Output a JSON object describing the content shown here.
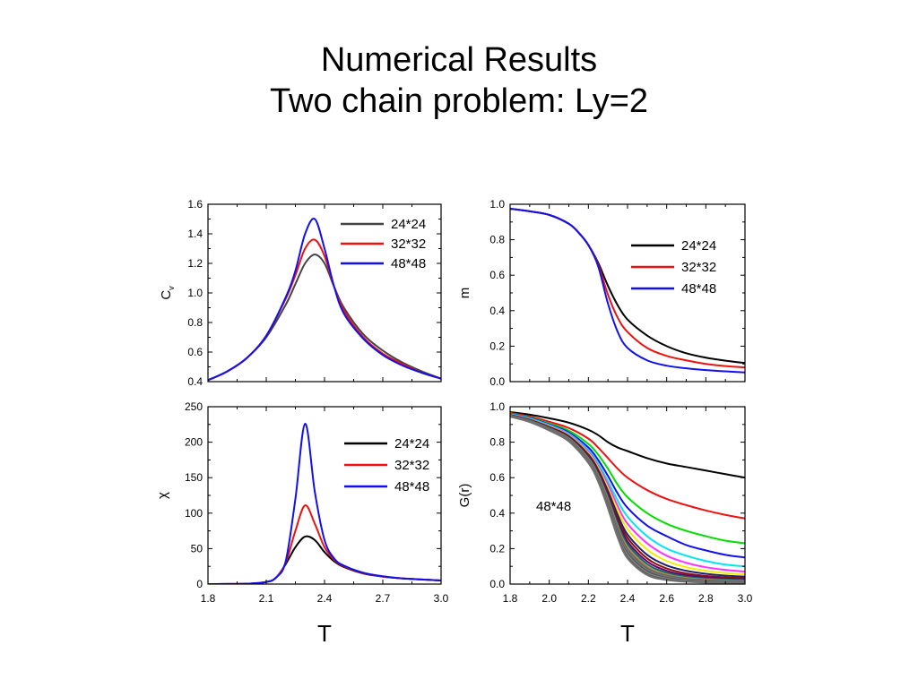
{
  "title": {
    "line1": "Numerical Results",
    "line2": "Two chain problem: Ly=2"
  },
  "chart_data": [
    {
      "id": "cv",
      "type": "line",
      "xlabel": "",
      "ylabel": "C_v",
      "xlim": [
        1.8,
        3.0
      ],
      "ylim": [
        0.4,
        1.6
      ],
      "xticks": [],
      "yticks": [
        0.4,
        0.6,
        0.8,
        1.0,
        1.2,
        1.4,
        1.6
      ],
      "ytick_labels": [
        "0.4",
        "0.6",
        "0.8",
        "1.0",
        "1.2",
        "1.4",
        "1.6"
      ],
      "legend": "top-right",
      "series": [
        {
          "name": "24*24",
          "color": "#444444",
          "x": [
            1.8,
            1.9,
            2.0,
            2.1,
            2.2,
            2.25,
            2.3,
            2.35,
            2.4,
            2.45,
            2.5,
            2.6,
            2.7,
            2.8,
            2.9,
            3.0
          ],
          "y": [
            0.41,
            0.47,
            0.56,
            0.7,
            0.92,
            1.06,
            1.2,
            1.26,
            1.2,
            1.04,
            0.9,
            0.72,
            0.61,
            0.53,
            0.47,
            0.42
          ]
        },
        {
          "name": "32*32",
          "color": "#ee1111",
          "x": [
            1.8,
            1.9,
            2.0,
            2.1,
            2.2,
            2.25,
            2.3,
            2.35,
            2.4,
            2.45,
            2.5,
            2.6,
            2.7,
            2.8,
            2.9,
            3.0
          ],
          "y": [
            0.41,
            0.47,
            0.56,
            0.71,
            0.96,
            1.12,
            1.3,
            1.36,
            1.25,
            1.04,
            0.88,
            0.7,
            0.59,
            0.52,
            0.46,
            0.42
          ]
        },
        {
          "name": "48*48",
          "color": "#1111ee",
          "x": [
            1.8,
            1.9,
            2.0,
            2.1,
            2.2,
            2.25,
            2.3,
            2.35,
            2.4,
            2.45,
            2.5,
            2.6,
            2.7,
            2.8,
            2.9,
            3.0
          ],
          "y": [
            0.41,
            0.47,
            0.56,
            0.71,
            0.97,
            1.15,
            1.4,
            1.5,
            1.3,
            1.04,
            0.86,
            0.69,
            0.58,
            0.51,
            0.46,
            0.42
          ]
        }
      ]
    },
    {
      "id": "m",
      "type": "line",
      "xlabel": "",
      "ylabel": "m",
      "xlim": [
        1.8,
        3.0
      ],
      "ylim": [
        0.0,
        1.0
      ],
      "xticks": [],
      "yticks": [
        0.0,
        0.2,
        0.4,
        0.6,
        0.8,
        1.0
      ],
      "ytick_labels": [
        "0.0",
        "0.2",
        "0.4",
        "0.6",
        "0.8",
        "1.0"
      ],
      "legend": "right",
      "series": [
        {
          "name": "24*24",
          "color": "#000000",
          "x": [
            1.8,
            1.9,
            2.0,
            2.1,
            2.15,
            2.2,
            2.25,
            2.3,
            2.35,
            2.4,
            2.5,
            2.6,
            2.7,
            2.8,
            2.9,
            3.0
          ],
          "y": [
            0.975,
            0.96,
            0.94,
            0.89,
            0.84,
            0.77,
            0.67,
            0.54,
            0.43,
            0.35,
            0.26,
            0.2,
            0.16,
            0.135,
            0.118,
            0.105
          ]
        },
        {
          "name": "32*32",
          "color": "#ee1111",
          "x": [
            1.8,
            1.9,
            2.0,
            2.1,
            2.15,
            2.2,
            2.25,
            2.3,
            2.35,
            2.4,
            2.5,
            2.6,
            2.7,
            2.8,
            2.9,
            3.0
          ],
          "y": [
            0.975,
            0.96,
            0.94,
            0.89,
            0.84,
            0.77,
            0.66,
            0.49,
            0.36,
            0.28,
            0.19,
            0.145,
            0.12,
            0.1,
            0.088,
            0.08
          ]
        },
        {
          "name": "48*48",
          "color": "#1111ee",
          "x": [
            1.8,
            1.9,
            2.0,
            2.1,
            2.15,
            2.2,
            2.25,
            2.3,
            2.35,
            2.4,
            2.5,
            2.6,
            2.7,
            2.8,
            2.9,
            3.0
          ],
          "y": [
            0.975,
            0.96,
            0.94,
            0.89,
            0.84,
            0.77,
            0.65,
            0.44,
            0.28,
            0.19,
            0.12,
            0.09,
            0.075,
            0.065,
            0.058,
            0.052
          ]
        }
      ]
    },
    {
      "id": "chi",
      "type": "line",
      "xlabel": "T",
      "ylabel": "χ",
      "xlim": [
        1.8,
        3.0
      ],
      "ylim": [
        0,
        250
      ],
      "xticks": [
        1.8,
        2.1,
        2.4,
        2.7,
        3.0
      ],
      "xtick_labels": [
        "1.8",
        "2.1",
        "2.4",
        "2.7",
        "3.0"
      ],
      "yticks": [
        0,
        50,
        100,
        150,
        200,
        250
      ],
      "ytick_labels": [
        "0",
        "50",
        "100",
        "150",
        "200",
        "250"
      ],
      "legend": "top-right",
      "series": [
        {
          "name": "24*24",
          "color": "#000000",
          "x": [
            1.8,
            2.0,
            2.1,
            2.15,
            2.2,
            2.25,
            2.3,
            2.35,
            2.4,
            2.45,
            2.5,
            2.6,
            2.7,
            2.8,
            2.9,
            3.0
          ],
          "y": [
            0,
            0.5,
            3,
            9,
            28,
            52,
            67,
            62,
            45,
            32,
            24,
            15,
            10.5,
            8,
            6.5,
            5
          ]
        },
        {
          "name": "32*32",
          "color": "#ee1111",
          "x": [
            1.8,
            2.0,
            2.1,
            2.15,
            2.2,
            2.25,
            2.3,
            2.35,
            2.4,
            2.45,
            2.5,
            2.6,
            2.7,
            2.8,
            2.9,
            3.0
          ],
          "y": [
            0,
            0.5,
            3,
            9,
            30,
            75,
            111,
            85,
            52,
            34,
            25,
            15.5,
            10.5,
            8,
            6.5,
            5
          ]
        },
        {
          "name": "48*48",
          "color": "#1111ee",
          "x": [
            1.8,
            2.0,
            2.1,
            2.15,
            2.2,
            2.25,
            2.3,
            2.35,
            2.4,
            2.45,
            2.5,
            2.6,
            2.7,
            2.8,
            2.9,
            3.0
          ],
          "y": [
            0,
            0.5,
            3,
            9,
            32,
            120,
            226,
            130,
            62,
            36,
            26,
            16,
            11,
            8,
            6.5,
            5
          ]
        }
      ]
    },
    {
      "id": "gr",
      "type": "line",
      "xlabel": "T",
      "ylabel": "G(r)",
      "annotation": "48*48",
      "xlim": [
        1.8,
        3.0
      ],
      "ylim": [
        0.0,
        1.0
      ],
      "xticks": [
        1.8,
        2.0,
        2.2,
        2.4,
        2.6,
        2.8,
        3.0
      ],
      "xtick_labels": [
        "1.8",
        "2.0",
        "2.2",
        "2.4",
        "2.6",
        "2.8",
        "3.0"
      ],
      "yticks": [
        0.0,
        0.2,
        0.4,
        0.6,
        0.8,
        1.0
      ],
      "ytick_labels": [
        "0.0",
        "0.2",
        "0.4",
        "0.6",
        "0.8",
        "1.0"
      ],
      "legend": "none",
      "x": [
        1.8,
        1.9,
        2.0,
        2.1,
        2.2,
        2.25,
        2.3,
        2.35,
        2.4,
        2.5,
        2.6,
        2.7,
        2.8,
        2.9,
        3.0
      ],
      "series": [
        {
          "color": "#000000",
          "y": [
            0.97,
            0.955,
            0.935,
            0.91,
            0.87,
            0.84,
            0.8,
            0.77,
            0.75,
            0.71,
            0.68,
            0.66,
            0.64,
            0.62,
            0.6
          ]
        },
        {
          "color": "#ee1111",
          "y": [
            0.965,
            0.945,
            0.915,
            0.88,
            0.82,
            0.77,
            0.71,
            0.65,
            0.6,
            0.53,
            0.48,
            0.445,
            0.415,
            0.39,
            0.37
          ]
        },
        {
          "color": "#00dd00",
          "y": [
            0.962,
            0.94,
            0.905,
            0.865,
            0.79,
            0.73,
            0.65,
            0.56,
            0.49,
            0.4,
            0.34,
            0.3,
            0.27,
            0.245,
            0.23
          ]
        },
        {
          "color": "#1111ee",
          "y": [
            0.96,
            0.937,
            0.9,
            0.855,
            0.77,
            0.7,
            0.61,
            0.51,
            0.43,
            0.33,
            0.27,
            0.22,
            0.19,
            0.165,
            0.15
          ]
        },
        {
          "color": "#00e5ee",
          "y": [
            0.958,
            0.934,
            0.896,
            0.848,
            0.755,
            0.68,
            0.58,
            0.47,
            0.38,
            0.27,
            0.2,
            0.16,
            0.13,
            0.11,
            0.1
          ]
        },
        {
          "color": "#ff33ff",
          "y": [
            0.956,
            0.931,
            0.892,
            0.842,
            0.745,
            0.665,
            0.56,
            0.44,
            0.34,
            0.23,
            0.16,
            0.12,
            0.095,
            0.08,
            0.07
          ]
        },
        {
          "color": "#eeee00",
          "y": [
            0.955,
            0.929,
            0.889,
            0.838,
            0.737,
            0.655,
            0.54,
            0.415,
            0.31,
            0.195,
            0.13,
            0.095,
            0.075,
            0.062,
            0.055
          ]
        },
        {
          "color": "#222266",
          "y": [
            0.954,
            0.927,
            0.886,
            0.834,
            0.73,
            0.645,
            0.525,
            0.39,
            0.28,
            0.165,
            0.105,
            0.075,
            0.058,
            0.048,
            0.042
          ]
        },
        {
          "color": "#881111",
          "y": [
            0.953,
            0.925,
            0.883,
            0.83,
            0.724,
            0.636,
            0.51,
            0.37,
            0.26,
            0.145,
            0.088,
            0.06,
            0.046,
            0.038,
            0.033
          ]
        },
        {
          "color": "#6a006a",
          "y": [
            0.952,
            0.924,
            0.881,
            0.827,
            0.718,
            0.628,
            0.5,
            0.355,
            0.24,
            0.128,
            0.075,
            0.05,
            0.038,
            0.031,
            0.027
          ]
        },
        {
          "color": "#0a6a6a",
          "y": [
            0.951,
            0.923,
            0.879,
            0.824,
            0.713,
            0.62,
            0.49,
            0.34,
            0.225,
            0.113,
            0.064,
            0.042,
            0.031,
            0.025,
            0.022
          ]
        },
        {
          "color": "#b08a4a",
          "y": [
            0.95,
            0.921,
            0.877,
            0.821,
            0.708,
            0.613,
            0.48,
            0.325,
            0.21,
            0.1,
            0.055,
            0.035,
            0.026,
            0.021,
            0.018
          ]
        },
        {
          "color": "#666666",
          "y": [
            0.949,
            0.92,
            0.875,
            0.818,
            0.703,
            0.606,
            0.47,
            0.313,
            0.196,
            0.09,
            0.048,
            0.03,
            0.022,
            0.017,
            0.015
          ]
        },
        {
          "color": "#777777",
          "y": [
            0.948,
            0.919,
            0.873,
            0.815,
            0.698,
            0.6,
            0.46,
            0.3,
            0.184,
            0.08,
            0.042,
            0.025,
            0.018,
            0.014,
            0.012
          ]
        },
        {
          "color": "#555555",
          "y": [
            0.947,
            0.917,
            0.871,
            0.812,
            0.694,
            0.594,
            0.452,
            0.29,
            0.173,
            0.072,
            0.036,
            0.021,
            0.015,
            0.012,
            0.01
          ]
        },
        {
          "color": "#888888",
          "y": [
            0.946,
            0.916,
            0.869,
            0.81,
            0.69,
            0.588,
            0.443,
            0.28,
            0.163,
            0.064,
            0.031,
            0.018,
            0.012,
            0.01,
            0.008
          ]
        },
        {
          "color": "#5a5a5a",
          "y": [
            0.945,
            0.915,
            0.867,
            0.807,
            0.686,
            0.583,
            0.435,
            0.27,
            0.153,
            0.057,
            0.027,
            0.015,
            0.01,
            0.008,
            0.006
          ]
        },
        {
          "color": "#707070",
          "y": [
            0.944,
            0.914,
            0.866,
            0.805,
            0.683,
            0.578,
            0.428,
            0.262,
            0.145,
            0.051,
            0.023,
            0.013,
            0.008,
            0.006,
            0.005
          ]
        }
      ]
    }
  ]
}
